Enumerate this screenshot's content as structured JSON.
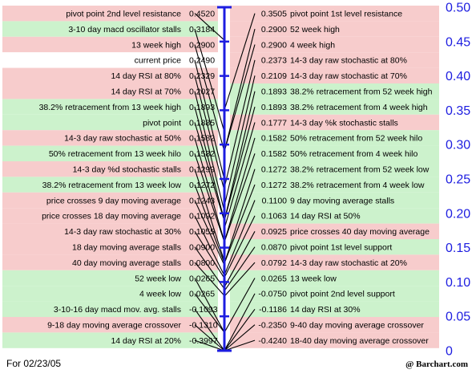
{
  "chart_data": {
    "type": "table",
    "ylim": [
      0,
      0.5
    ],
    "y_ticks": [
      "0",
      "0.05",
      "0.10",
      "0.15",
      "0.20",
      "0.25",
      "0.30",
      "0.35",
      "0.40",
      "0.45",
      "0.50"
    ],
    "colors": {
      "pink": "#f7cccc",
      "green": "#ccf2cc",
      "axis": "#1d1de0",
      "line": "#000000"
    },
    "left_rows": [
      {
        "label": "pivot point 2nd level resistance",
        "value": 0.452,
        "value_text": "0.4520",
        "bg": "pink"
      },
      {
        "label": "3-10 day macd oscillator stalls",
        "value": 0.3184,
        "value_text": "0.3184",
        "bg": "green"
      },
      {
        "label": "13 week high",
        "value": 0.29,
        "value_text": "0.2900",
        "bg": "pink"
      },
      {
        "label": "current price",
        "value": 0.249,
        "value_text": "0.2490",
        "bg": "white"
      },
      {
        "label": "14 day RSI at 80%",
        "value": 0.2329,
        "value_text": "0.2329",
        "bg": "pink"
      },
      {
        "label": "14 day RSI at 70%",
        "value": 0.2027,
        "value_text": "0.2027",
        "bg": "pink"
      },
      {
        "label": "38.2% retracement from 13 week high",
        "value": 0.1893,
        "value_text": "0.1893",
        "bg": "green"
      },
      {
        "label": "pivot point",
        "value": 0.1885,
        "value_text": "0.1885",
        "bg": "green"
      },
      {
        "label": "14-3 day raw stochastic at 50%",
        "value": 0.1582,
        "value_text": "0.1582",
        "bg": "pink"
      },
      {
        "label": "50% retracement from 13 week hilo",
        "value": 0.1582,
        "value_text": "0.1582",
        "bg": "green"
      },
      {
        "label": "14-3 day %d stochastic stalls",
        "value": 0.1299,
        "value_text": "0.1299",
        "bg": "pink"
      },
      {
        "label": "38.2% retracement from 13 week low",
        "value": 0.1272,
        "value_text": "0.1272",
        "bg": "green"
      },
      {
        "label": "price crosses 9 day moving average",
        "value": 0.1243,
        "value_text": "0.1243",
        "bg": "pink"
      },
      {
        "label": "price crosses 18 day moving average",
        "value": 0.1092,
        "value_text": "0.1092",
        "bg": "pink"
      },
      {
        "label": "14-3 day raw stochastic at 30%",
        "value": 0.1055,
        "value_text": "0.1055",
        "bg": "pink"
      },
      {
        "label": "18 day moving average stalls",
        "value": 0.09,
        "value_text": "0.0900",
        "bg": "pink"
      },
      {
        "label": "40 day moving average stalls",
        "value": 0.08,
        "value_text": "0.0800",
        "bg": "pink"
      },
      {
        "label": "52 week low",
        "value": 0.0265,
        "value_text": "0.0265",
        "bg": "green"
      },
      {
        "label": "4 week low",
        "value": 0.0265,
        "value_text": "0.0265",
        "bg": "green"
      },
      {
        "label": "3-10-16 day macd mov. avg. stalls",
        "value": -0.1093,
        "value_text": "-0.1093",
        "bg": "green"
      },
      {
        "label": "9-18 day moving average crossover",
        "value": -0.131,
        "value_text": "-0.1310",
        "bg": "pink"
      },
      {
        "label": "14 day RSI at 20%",
        "value": -0.3997,
        "value_text": "-0.3997",
        "bg": "green"
      }
    ],
    "right_rows": [
      {
        "label": "pivot point 1st level resistance",
        "value": 0.3505,
        "value_text": "0.3505",
        "bg": "pink"
      },
      {
        "label": "52 week high",
        "value": 0.29,
        "value_text": "0.2900",
        "bg": "pink"
      },
      {
        "label": "4 week high",
        "value": 0.29,
        "value_text": "0.2900",
        "bg": "pink"
      },
      {
        "label": "14-3 day raw stochastic at 80%",
        "value": 0.2373,
        "value_text": "0.2373",
        "bg": "pink"
      },
      {
        "label": "14-3 day raw stochastic at 70%",
        "value": 0.2109,
        "value_text": "0.2109",
        "bg": "pink"
      },
      {
        "label": "38.2% retracement from 52 week high",
        "value": 0.1893,
        "value_text": "0.1893",
        "bg": "green"
      },
      {
        "label": "38.2% retracement from 4 week high",
        "value": 0.1893,
        "value_text": "0.1893",
        "bg": "green"
      },
      {
        "label": "14-3 day %k stochastic stalls",
        "value": 0.1777,
        "value_text": "0.1777",
        "bg": "pink"
      },
      {
        "label": "50% retracement from 52 week hilo",
        "value": 0.1582,
        "value_text": "0.1582",
        "bg": "green"
      },
      {
        "label": "50% retracement from 4 week hilo",
        "value": 0.1582,
        "value_text": "0.1582",
        "bg": "green"
      },
      {
        "label": "38.2% retracement from 52 week low",
        "value": 0.1272,
        "value_text": "0.1272",
        "bg": "green"
      },
      {
        "label": "38.2% retracement from 4 week low",
        "value": 0.1272,
        "value_text": "0.1272",
        "bg": "green"
      },
      {
        "label": "9 day moving average stalls",
        "value": 0.11,
        "value_text": "0.1100",
        "bg": "green"
      },
      {
        "label": "14 day RSI at 50%",
        "value": 0.1063,
        "value_text": "0.1063",
        "bg": "green"
      },
      {
        "label": "price crosses 40 day moving average",
        "value": 0.0925,
        "value_text": "0.0925",
        "bg": "pink"
      },
      {
        "label": "pivot point 1st level support",
        "value": 0.087,
        "value_text": "0.0870",
        "bg": "green"
      },
      {
        "label": "14-3 day raw stochastic at 20%",
        "value": 0.0792,
        "value_text": "0.0792",
        "bg": "pink"
      },
      {
        "label": "13 week low",
        "value": 0.0265,
        "value_text": "0.0265",
        "bg": "green"
      },
      {
        "label": "pivot point 2nd level support",
        "value": -0.075,
        "value_text": "-0.0750",
        "bg": "green"
      },
      {
        "label": "14 day RSI at 30%",
        "value": -0.1186,
        "value_text": "-0.1186",
        "bg": "green"
      },
      {
        "label": "9-40 day moving average crossover",
        "value": -0.235,
        "value_text": "-0.2350",
        "bg": "pink"
      },
      {
        "label": "18-40 day moving average crossover",
        "value": -0.424,
        "value_text": "-0.4240",
        "bg": "pink"
      }
    ]
  },
  "footer": {
    "date_text": "For 02/23/05",
    "credit_text": "@ Barchart.com"
  }
}
